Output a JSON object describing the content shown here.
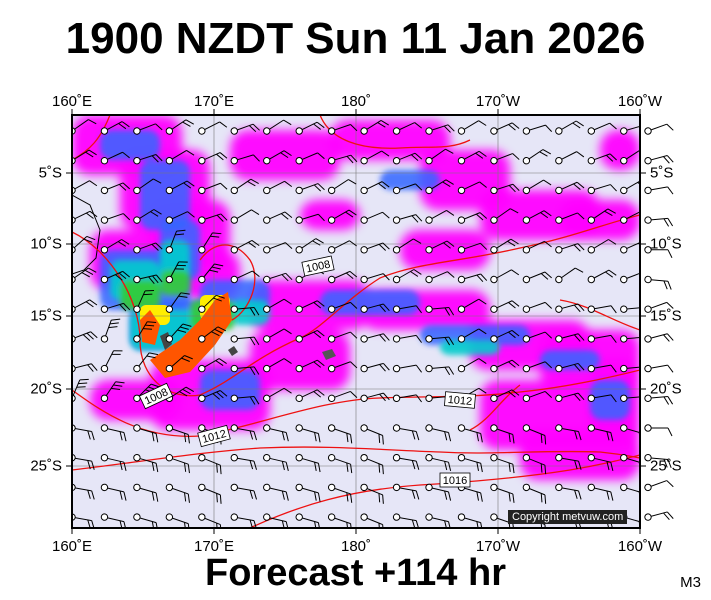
{
  "title": "1900 NZDT Sun 11 Jan 2026",
  "forecast": "Forecast +114 hr",
  "model_tag": "M3",
  "copyright": "Copyright metvuw.com",
  "lon_labels": [
    "160˚E",
    "170˚E",
    "180˚",
    "170˚W",
    "160˚W"
  ],
  "lat_labels": [
    "5˚S",
    "10˚S",
    "15˚S",
    "20˚S",
    "25˚S"
  ],
  "isobar_labels": [
    "1008",
    "1008",
    "1012",
    "1012",
    "1016"
  ],
  "colors": {
    "background": "#e6e6f7",
    "rain_light": "#cc33ff",
    "rain_mid": "#ff00ff",
    "rain_blue": "#3366ff",
    "rain_cyan": "#00cccc",
    "rain_green": "#33cc33",
    "rain_yellow": "#ffee00",
    "rain_heavy": "#ff5500",
    "isobar": "#ee1111"
  }
}
